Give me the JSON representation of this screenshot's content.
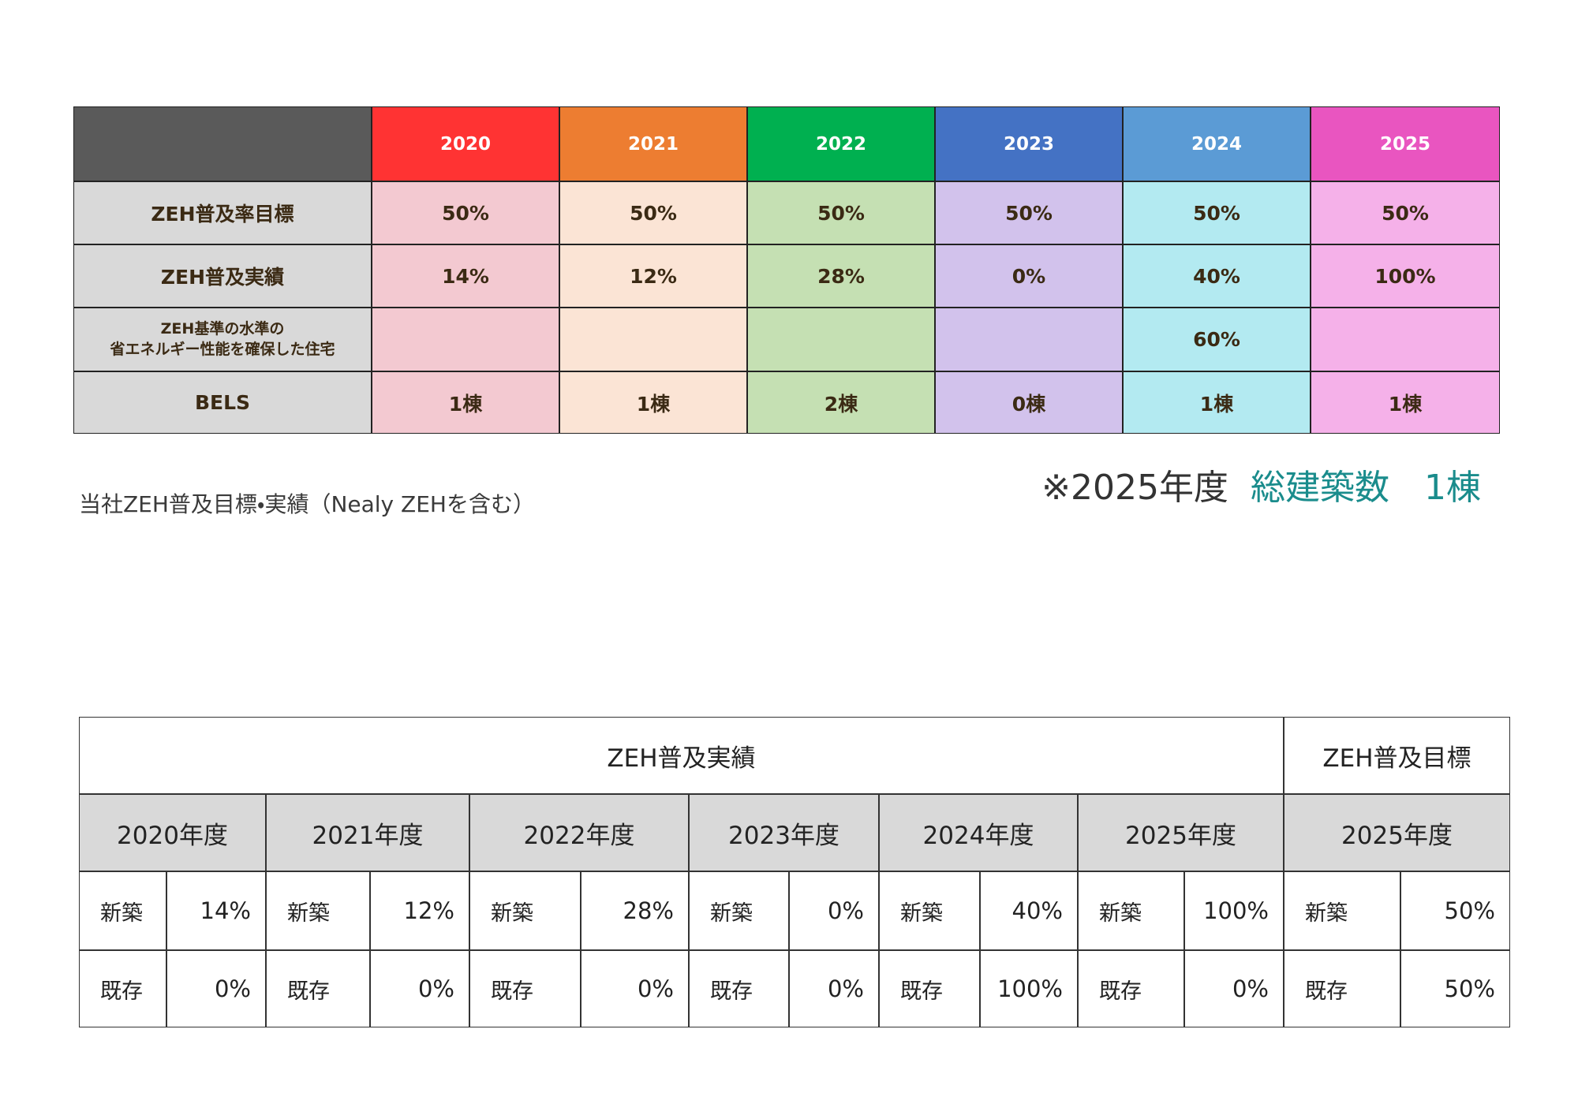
{
  "top_table": {
    "header": [
      "2020",
      "2021",
      "2022",
      "2023",
      "2024",
      "2025"
    ],
    "header_colors": [
      "#5a5a5a",
      "#ff3333",
      "#ed7d31",
      "#00b050",
      "#4472c4",
      "#5b9bd5",
      "#e955c0"
    ],
    "column_colors": [
      "#d9d9d9",
      "#f3c9d1",
      "#fbe4d5",
      "#c5e0b3",
      "#d2c2ec",
      "#b3eaf1",
      "#f5b1e9"
    ],
    "rows": [
      {
        "label": "ZEH普及率目標",
        "cells": [
          "50%",
          "50%",
          "50%",
          "50%",
          "50%",
          "50%"
        ]
      },
      {
        "label": "ZEH普及実績",
        "cells": [
          "14%",
          "12%",
          "28%",
          "0%",
          "40%",
          "100%"
        ]
      },
      {
        "label": "ZEH基準の水準の\n省エネルギー性能を確保した住宅",
        "cells": [
          null,
          null,
          null,
          null,
          "60%",
          null
        ]
      },
      {
        "label": "BELS",
        "cells": [
          "1棟",
          "1棟",
          "2棟",
          "0棟",
          "1棟",
          "1棟"
        ]
      }
    ]
  },
  "caption": "当社ZEH普及目標・実績（Nealy ZEHを含む）",
  "note": {
    "prefix": "※2025年度",
    "text": "総建築数　1棟"
  },
  "bottom_table": {
    "title_results": "ZEH普及実績",
    "title_target": "ZEH普及目標",
    "years": [
      "2020年度",
      "2021年度",
      "2022年度",
      "2023年度",
      "2024年度",
      "2025年度",
      "2025年度"
    ],
    "rows": [
      {
        "label": "新築",
        "values": [
          "14%",
          "12%",
          "28%",
          "0%",
          "40%",
          "100%",
          "50%"
        ]
      },
      {
        "label": "既存",
        "values": [
          "0%",
          "0%",
          "0%",
          "0%",
          "100%",
          "0%",
          "50%"
        ]
      }
    ]
  }
}
